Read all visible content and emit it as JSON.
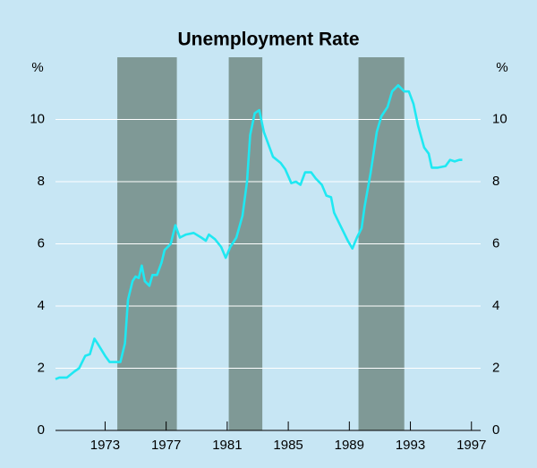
{
  "chart_data": {
    "type": "line",
    "title": "Unemployment Rate",
    "ylabel": "%",
    "y2label": "%",
    "xlim": [
      1969.75,
      1997.6
    ],
    "xticks": [
      1973,
      1977,
      1981,
      1985,
      1989,
      1993,
      1997
    ],
    "ylim": [
      0,
      12
    ],
    "yticks": [
      0,
      2,
      4,
      6,
      8,
      10
    ],
    "y2lim": [
      0,
      12
    ],
    "y2ticks": [
      0,
      2,
      4,
      6,
      8,
      10
    ],
    "grid": true,
    "shade_color": "#7f9996",
    "shaded_periods": [
      [
        1973.8,
        1977.7
      ],
      [
        1981.1,
        1983.3
      ],
      [
        1989.6,
        1992.6
      ]
    ],
    "series": [
      {
        "name": "Unemployment rate",
        "color": "#1fe8f2",
        "x": [
          1969.75,
          1970.0,
          1970.5,
          1971.0,
          1971.3,
          1971.7,
          1972.0,
          1972.3,
          1972.5,
          1973.0,
          1973.3,
          1973.7,
          1974.0,
          1974.3,
          1974.5,
          1974.8,
          1975.0,
          1975.2,
          1975.4,
          1975.6,
          1975.9,
          1976.1,
          1976.4,
          1976.7,
          1976.9,
          1977.3,
          1977.6,
          1977.9,
          1978.3,
          1978.8,
          1979.3,
          1979.6,
          1979.8,
          1980.2,
          1980.6,
          1980.9,
          1981.2,
          1981.6,
          1982.0,
          1982.3,
          1982.5,
          1982.8,
          1983.1,
          1983.4,
          1983.7,
          1984.0,
          1984.5,
          1984.8,
          1985.2,
          1985.5,
          1985.8,
          1986.1,
          1986.5,
          1986.8,
          1987.2,
          1987.5,
          1987.8,
          1988.0,
          1988.3,
          1988.6,
          1988.9,
          1989.2,
          1989.5,
          1989.8,
          1990.0,
          1990.4,
          1990.8,
          1991.1,
          1991.5,
          1991.8,
          1992.2,
          1992.6,
          1992.9,
          1993.2,
          1993.5,
          1993.9,
          1994.2,
          1994.4,
          1994.8,
          1995.3,
          1995.6,
          1995.9,
          1996.2,
          1996.4
        ],
        "values": [
          1.65,
          1.7,
          1.7,
          1.9,
          2.0,
          2.4,
          2.45,
          2.95,
          2.8,
          2.4,
          2.2,
          2.2,
          2.2,
          2.8,
          4.2,
          4.8,
          4.95,
          4.9,
          5.3,
          4.8,
          4.65,
          5.0,
          5.0,
          5.4,
          5.8,
          6.0,
          6.6,
          6.2,
          6.3,
          6.35,
          6.2,
          6.1,
          6.3,
          6.15,
          5.9,
          5.55,
          5.9,
          6.2,
          6.9,
          8.0,
          9.5,
          10.2,
          10.3,
          9.6,
          9.2,
          8.8,
          8.6,
          8.4,
          7.95,
          8.0,
          7.9,
          8.3,
          8.3,
          8.1,
          7.9,
          7.55,
          7.5,
          7.0,
          6.7,
          6.4,
          6.1,
          5.85,
          6.2,
          6.5,
          7.2,
          8.3,
          9.6,
          10.1,
          10.4,
          10.9,
          11.1,
          10.9,
          10.9,
          10.5,
          9.8,
          9.1,
          8.9,
          8.45,
          8.45,
          8.5,
          8.7,
          8.65,
          8.7,
          8.7
        ]
      }
    ]
  }
}
